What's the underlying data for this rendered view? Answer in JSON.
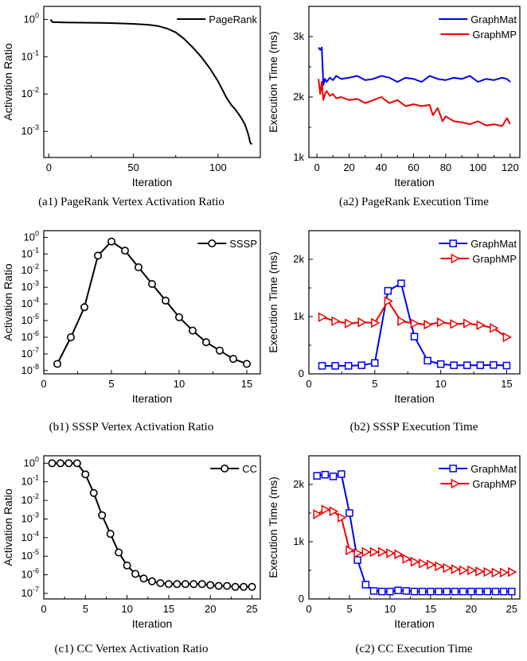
{
  "chart_data": [
    {
      "id": "a1",
      "type": "line",
      "caption": "(a1) PageRank Vertex Activation Ratio",
      "xlabel": "Iteration",
      "ylabel": "Activation Ratio",
      "xlim": [
        -3,
        125
      ],
      "xticks": [
        0,
        50,
        100
      ],
      "yscale": "log",
      "ylim_exp": [
        -3.7,
        0.35
      ],
      "yticks_exp": [
        0,
        -1,
        -2,
        -3
      ],
      "legend_position": "top-right",
      "grid": false,
      "series": [
        {
          "name": "PageRank",
          "color": "#000000",
          "marker": "none",
          "x": [
            1,
            2,
            10,
            20,
            30,
            40,
            50,
            55,
            60,
            65,
            70,
            75,
            80,
            85,
            90,
            95,
            100,
            105,
            108,
            110,
            112,
            114,
            116,
            117,
            118,
            119,
            120
          ],
          "y": [
            1.0,
            0.85,
            0.83,
            0.82,
            0.81,
            0.79,
            0.76,
            0.74,
            0.71,
            0.66,
            0.57,
            0.45,
            0.3,
            0.18,
            0.1,
            0.05,
            0.022,
            0.008,
            0.005,
            0.004,
            0.003,
            0.0022,
            0.0015,
            0.0011,
            0.0008,
            0.0005,
            0.00045
          ]
        }
      ]
    },
    {
      "id": "a2",
      "type": "line",
      "caption": "(a2) PageRank Execution Time",
      "xlabel": "Iteration",
      "ylabel": "Execution Time (ms)",
      "xlim": [
        -5,
        126
      ],
      "xticks": [
        0,
        20,
        40,
        60,
        80,
        100,
        120
      ],
      "ylim": [
        1000,
        3500
      ],
      "yticks": [
        1000,
        2000,
        3000
      ],
      "ytick_labels": [
        "1k",
        "2k",
        "3k"
      ],
      "legend_position": "top-right",
      "grid": false,
      "series": [
        {
          "name": "GraphMat",
          "color": "#0000ee",
          "marker": "none",
          "x": [
            1,
            2,
            3,
            4,
            5,
            6,
            8,
            10,
            12,
            15,
            20,
            25,
            30,
            35,
            40,
            45,
            50,
            55,
            60,
            65,
            70,
            75,
            80,
            85,
            90,
            95,
            100,
            105,
            110,
            115,
            118,
            120
          ],
          "y": [
            2820,
            2780,
            2820,
            2200,
            2300,
            2250,
            2320,
            2280,
            2350,
            2300,
            2320,
            2350,
            2280,
            2300,
            2350,
            2320,
            2250,
            2320,
            2300,
            2250,
            2350,
            2300,
            2280,
            2320,
            2300,
            2350,
            2250,
            2300,
            2280,
            2320,
            2300,
            2250
          ]
        },
        {
          "name": "GraphMP",
          "color": "#ee0000",
          "marker": "none",
          "x": [
            1,
            2,
            3,
            4,
            5,
            6,
            8,
            10,
            12,
            15,
            20,
            25,
            30,
            35,
            40,
            45,
            50,
            55,
            60,
            65,
            70,
            72,
            75,
            78,
            80,
            85,
            90,
            95,
            100,
            105,
            110,
            115,
            118,
            120
          ],
          "y": [
            2300,
            2050,
            2250,
            1950,
            2050,
            2100,
            2020,
            2050,
            1980,
            2000,
            1950,
            1970,
            1900,
            1950,
            2000,
            1900,
            1950,
            1850,
            1880,
            1850,
            1870,
            1700,
            1820,
            1600,
            1680,
            1600,
            1580,
            1550,
            1600,
            1530,
            1550,
            1520,
            1650,
            1550
          ]
        }
      ]
    },
    {
      "id": "b1",
      "type": "line",
      "caption": "(b1) SSSP Vertex Activation Ratio",
      "xlabel": "Iteration",
      "ylabel": "Activation Ratio",
      "xlim": [
        0,
        16
      ],
      "xticks": [
        0,
        5,
        10,
        15
      ],
      "yscale": "log",
      "ylim_exp": [
        -8.2,
        0.4
      ],
      "yticks_exp": [
        0,
        -1,
        -2,
        -3,
        -4,
        -5,
        -6,
        -7,
        -8
      ],
      "legend_position": "top-right",
      "grid": false,
      "series": [
        {
          "name": "SSSP",
          "color": "#000000",
          "marker": "circle",
          "x": [
            1,
            2,
            3,
            4,
            5,
            6,
            7,
            8,
            9,
            10,
            11,
            12,
            13,
            14,
            15
          ],
          "y_exp": [
            -7.6,
            -6.0,
            -4.2,
            -1.1,
            -0.25,
            -0.8,
            -1.8,
            -2.8,
            -3.8,
            -4.8,
            -5.6,
            -6.3,
            -6.8,
            -7.3,
            -7.6
          ]
        }
      ]
    },
    {
      "id": "b2",
      "type": "line",
      "caption": "(b2) SSSP Execution Time",
      "xlabel": "Iteration",
      "ylabel": "Execution Time (ms)",
      "xlim": [
        0,
        16
      ],
      "xticks": [
        0,
        5,
        10,
        15
      ],
      "ylim": [
        0,
        2500
      ],
      "yticks": [
        0,
        1000,
        2000
      ],
      "ytick_labels": [
        "0",
        "1k",
        "2k"
      ],
      "legend_position": "top-right",
      "grid": false,
      "series": [
        {
          "name": "GraphMat",
          "color": "#0000ee",
          "marker": "square",
          "x": [
            1,
            2,
            3,
            4,
            5,
            6,
            7,
            8,
            9,
            10,
            11,
            12,
            13,
            14,
            15
          ],
          "y": [
            140,
            140,
            140,
            150,
            190,
            1450,
            1580,
            650,
            230,
            170,
            150,
            150,
            150,
            155,
            145
          ]
        },
        {
          "name": "GraphMP",
          "color": "#ee0000",
          "marker": "triangle-right",
          "x": [
            1,
            2,
            3,
            4,
            5,
            6,
            7,
            8,
            9,
            10,
            11,
            12,
            13,
            14,
            15
          ],
          "y": [
            990,
            920,
            880,
            900,
            890,
            1270,
            920,
            880,
            860,
            900,
            870,
            880,
            850,
            800,
            640
          ]
        }
      ]
    },
    {
      "id": "c1",
      "type": "line",
      "caption": "(c1) CC Vertex Activation Ratio",
      "xlabel": "Iteration",
      "ylabel": "Activation Ratio",
      "xlim": [
        0,
        26
      ],
      "xticks": [
        0,
        5,
        10,
        15,
        20,
        25
      ],
      "yscale": "log",
      "ylim_exp": [
        -7.3,
        0.4
      ],
      "yticks_exp": [
        0,
        -1,
        -2,
        -3,
        -4,
        -5,
        -6,
        -7
      ],
      "legend_position": "top-right",
      "grid": false,
      "series": [
        {
          "name": "CC",
          "color": "#000000",
          "marker": "circle",
          "x": [
            1,
            2,
            3,
            4,
            5,
            6,
            7,
            8,
            9,
            10,
            11,
            12,
            13,
            14,
            15,
            16,
            17,
            18,
            19,
            20,
            21,
            22,
            23,
            24,
            25
          ],
          "y_exp": [
            0,
            0,
            0,
            0,
            -0.6,
            -1.6,
            -2.8,
            -3.8,
            -4.8,
            -5.5,
            -5.95,
            -6.2,
            -6.35,
            -6.45,
            -6.5,
            -6.5,
            -6.5,
            -6.5,
            -6.5,
            -6.55,
            -6.6,
            -6.6,
            -6.65,
            -6.65,
            -6.65
          ]
        }
      ]
    },
    {
      "id": "c2",
      "type": "line",
      "caption": "(c2) CC Execution Time",
      "xlabel": "Iteration",
      "ylabel": "Execution Time (ms)",
      "xlim": [
        0,
        26
      ],
      "xticks": [
        0,
        5,
        10,
        15,
        20,
        25
      ],
      "ylim": [
        0,
        2500
      ],
      "yticks": [
        0,
        1000,
        2000
      ],
      "ytick_labels": [
        "0",
        "1k",
        "2k"
      ],
      "legend_position": "top-right",
      "grid": false,
      "series": [
        {
          "name": "GraphMat",
          "color": "#0000ee",
          "marker": "square",
          "x": [
            1,
            2,
            3,
            4,
            5,
            6,
            7,
            8,
            9,
            10,
            11,
            12,
            13,
            14,
            15,
            16,
            17,
            18,
            19,
            20,
            21,
            22,
            23,
            24,
            25
          ],
          "y": [
            2150,
            2170,
            2140,
            2180,
            1500,
            680,
            250,
            140,
            130,
            130,
            150,
            140,
            130,
            130,
            130,
            130,
            130,
            130,
            130,
            130,
            130,
            130,
            130,
            130,
            130
          ]
        },
        {
          "name": "GraphMP",
          "color": "#ee0000",
          "marker": "triangle-right",
          "x": [
            1,
            2,
            3,
            4,
            5,
            6,
            7,
            8,
            9,
            10,
            11,
            12,
            13,
            14,
            15,
            16,
            17,
            18,
            19,
            20,
            21,
            22,
            23,
            24,
            25
          ],
          "y": [
            1480,
            1560,
            1530,
            1420,
            850,
            800,
            820,
            820,
            820,
            800,
            780,
            700,
            650,
            620,
            600,
            570,
            540,
            520,
            500,
            500,
            480,
            470,
            460,
            460,
            470
          ]
        }
      ]
    }
  ]
}
